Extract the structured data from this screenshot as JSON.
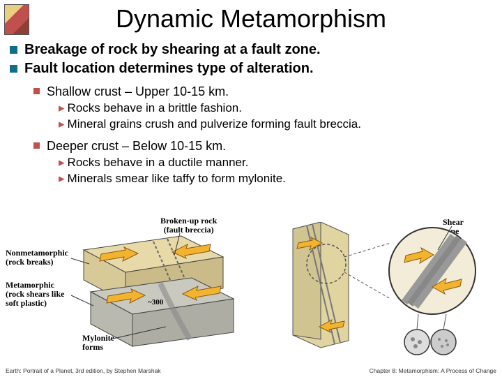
{
  "title": "Dynamic Metamorphism",
  "bullets": {
    "b1": "Breakage of rock by shearing at a fault zone.",
    "b2": "Fault location determines type of alteration.",
    "b2a": "Shallow crust – Upper 10-15 km.",
    "b2a1": "Rocks behave in a brittle fashion.",
    "b2a2": "Mineral grains crush and pulverize forming fault breccia.",
    "b2b": "Deeper crust – Below 10-15 km.",
    "b2b1": "Rocks behave in a ductile manner.",
    "b2b2": "Minerals smear like taffy to form mylonite."
  },
  "diagram": {
    "label_breccia": "Broken-up rock\n(fault breccia)",
    "label_nonmeta": "Nonmetamorphic\n(rock breaks)",
    "label_meta": "Metamorphic\n(rock shears like\nsoft plastic)",
    "label_mylonite": "Mylonite\nforms",
    "label_depth": "~300",
    "label_shear": "Shear\nzone",
    "colors": {
      "upper_block": "#e8d9a8",
      "lower_block": "#c9c9c0",
      "arrow": "#f2b430",
      "breccia_fill": "#d8c088",
      "circle_border": "#333333"
    }
  },
  "footer": {
    "left": "Earth: Portrait of a Planet, 3rd edition, by Stephen Marshak",
    "right": "Chapter 8: Metamorphism: A Process of Change"
  }
}
